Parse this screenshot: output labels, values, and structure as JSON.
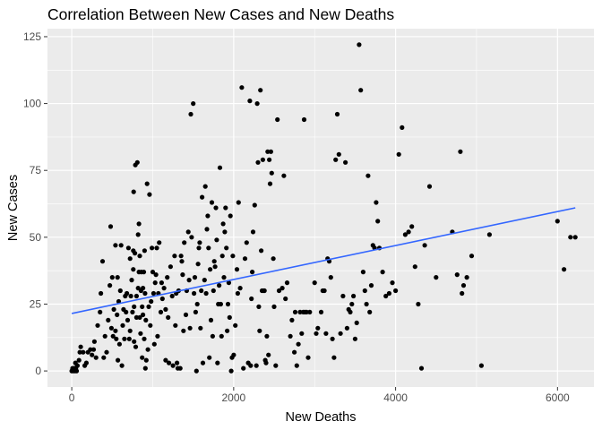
{
  "chart_data": {
    "type": "scatter",
    "title": "Correlation Between New Cases and New Deaths",
    "xlabel": "New Deaths",
    "ylabel": "New Cases",
    "xlim": [
      -300,
      6450
    ],
    "ylim": [
      -6,
      128
    ],
    "x_ticks": [
      0,
      2000,
      4000,
      6000
    ],
    "y_ticks": [
      0,
      25,
      50,
      75,
      100,
      125
    ],
    "grid": true,
    "legend": "none",
    "colors": {
      "panel": "#ebebeb",
      "grid": "#ffffff",
      "point": "#000000",
      "trend": "#3366ff"
    },
    "trend_line": {
      "x": [
        0,
        6220
      ],
      "y": [
        21.5,
        61
      ]
    },
    "points": [
      [
        0,
        0
      ],
      [
        10,
        1
      ],
      [
        20,
        0
      ],
      [
        30,
        1
      ],
      [
        40,
        0
      ],
      [
        50,
        1
      ],
      [
        60,
        0
      ],
      [
        70,
        2
      ],
      [
        45,
        3
      ],
      [
        90,
        4
      ],
      [
        100,
        7
      ],
      [
        110,
        9
      ],
      [
        140,
        7
      ],
      [
        160,
        2
      ],
      [
        180,
        3
      ],
      [
        200,
        7
      ],
      [
        230,
        8
      ],
      [
        250,
        6
      ],
      [
        270,
        8
      ],
      [
        280,
        11
      ],
      [
        300,
        5
      ],
      [
        320,
        17
      ],
      [
        350,
        22
      ],
      [
        360,
        29
      ],
      [
        380,
        41
      ],
      [
        395,
        5
      ],
      [
        410,
        13
      ],
      [
        430,
        7
      ],
      [
        450,
        19
      ],
      [
        470,
        32
      ],
      [
        480,
        54
      ],
      [
        490,
        16
      ],
      [
        500,
        35
      ],
      [
        510,
        13
      ],
      [
        520,
        23
      ],
      [
        540,
        15
      ],
      [
        540,
        47
      ],
      [
        550,
        12
      ],
      [
        560,
        21
      ],
      [
        565,
        35
      ],
      [
        570,
        4
      ],
      [
        580,
        26
      ],
      [
        590,
        10
      ],
      [
        600,
        30
      ],
      [
        610,
        47
      ],
      [
        620,
        2
      ],
      [
        630,
        17
      ],
      [
        640,
        23
      ],
      [
        650,
        12
      ],
      [
        660,
        28
      ],
      [
        670,
        22
      ],
      [
        680,
        29
      ],
      [
        690,
        19
      ],
      [
        700,
        46
      ],
      [
        710,
        12
      ],
      [
        720,
        42
      ],
      [
        720,
        15
      ],
      [
        730,
        28
      ],
      [
        740,
        34
      ],
      [
        750,
        22
      ],
      [
        760,
        38
      ],
      [
        760,
        45
      ],
      [
        765,
        67
      ],
      [
        770,
        11
      ],
      [
        770,
        24
      ],
      [
        780,
        44
      ],
      [
        785,
        77
      ],
      [
        790,
        9
      ],
      [
        800,
        20
      ],
      [
        800,
        28
      ],
      [
        810,
        78
      ],
      [
        820,
        31
      ],
      [
        820,
        51
      ],
      [
        830,
        55
      ],
      [
        830,
        37
      ],
      [
        840,
        20
      ],
      [
        840,
        43
      ],
      [
        850,
        14
      ],
      [
        855,
        30
      ],
      [
        860,
        37
      ],
      [
        870,
        5
      ],
      [
        870,
        24
      ],
      [
        880,
        21
      ],
      [
        880,
        31
      ],
      [
        890,
        37
      ],
      [
        895,
        12
      ],
      [
        900,
        45
      ],
      [
        905,
        29
      ],
      [
        910,
        1
      ],
      [
        915,
        19
      ],
      [
        920,
        4
      ],
      [
        930,
        70
      ],
      [
        940,
        8
      ],
      [
        950,
        24
      ],
      [
        960,
        66
      ],
      [
        970,
        17
      ],
      [
        980,
        26
      ],
      [
        990,
        46
      ],
      [
        1000,
        37
      ],
      [
        1010,
        29
      ],
      [
        1020,
        10
      ],
      [
        1030,
        33
      ],
      [
        1040,
        36
      ],
      [
        1050,
        46
      ],
      [
        1060,
        13
      ],
      [
        1070,
        29
      ],
      [
        1080,
        48
      ],
      [
        1100,
        22
      ],
      [
        1110,
        33
      ],
      [
        1120,
        27
      ],
      [
        1140,
        31
      ],
      [
        1160,
        23
      ],
      [
        1160,
        4
      ],
      [
        1180,
        35
      ],
      [
        1190,
        20
      ],
      [
        1200,
        3
      ],
      [
        1220,
        39
      ],
      [
        1240,
        28
      ],
      [
        1250,
        2
      ],
      [
        1270,
        43
      ],
      [
        1280,
        17
      ],
      [
        1290,
        29
      ],
      [
        1300,
        3
      ],
      [
        1310,
        1
      ],
      [
        1320,
        30
      ],
      [
        1340,
        1
      ],
      [
        1350,
        43
      ],
      [
        1360,
        41
      ],
      [
        1370,
        36
      ],
      [
        1380,
        15
      ],
      [
        1390,
        48
      ],
      [
        1410,
        21
      ],
      [
        1420,
        30
      ],
      [
        1440,
        52
      ],
      [
        1450,
        34
      ],
      [
        1460,
        16
      ],
      [
        1470,
        96
      ],
      [
        1480,
        50
      ],
      [
        1500,
        100
      ],
      [
        1510,
        29
      ],
      [
        1520,
        35
      ],
      [
        1530,
        22
      ],
      [
        1540,
        0
      ],
      [
        1550,
        25
      ],
      [
        1560,
        40
      ],
      [
        1570,
        46
      ],
      [
        1580,
        48
      ],
      [
        1590,
        16
      ],
      [
        1600,
        30
      ],
      [
        1610,
        65
      ],
      [
        1620,
        3
      ],
      [
        1640,
        34
      ],
      [
        1650,
        69
      ],
      [
        1660,
        29
      ],
      [
        1670,
        53
      ],
      [
        1680,
        58
      ],
      [
        1690,
        46
      ],
      [
        1700,
        5
      ],
      [
        1710,
        38
      ],
      [
        1720,
        19
      ],
      [
        1730,
        63
      ],
      [
        1740,
        13
      ],
      [
        1750,
        30
      ],
      [
        1760,
        41
      ],
      [
        1770,
        39
      ],
      [
        1780,
        61
      ],
      [
        1790,
        49
      ],
      [
        1800,
        3
      ],
      [
        1810,
        25
      ],
      [
        1820,
        32
      ],
      [
        1830,
        76
      ],
      [
        1840,
        25
      ],
      [
        1850,
        13
      ],
      [
        1860,
        43
      ],
      [
        1870,
        55
      ],
      [
        1880,
        35
      ],
      [
        1890,
        52
      ],
      [
        1900,
        61
      ],
      [
        1910,
        46
      ],
      [
        1920,
        15
      ],
      [
        1930,
        25
      ],
      [
        1940,
        33
      ],
      [
        1950,
        20
      ],
      [
        1960,
        58
      ],
      [
        1970,
        0
      ],
      [
        1980,
        5
      ],
      [
        1990,
        43
      ],
      [
        2000,
        6
      ],
      [
        2020,
        17
      ],
      [
        2040,
        38
      ],
      [
        2050,
        29
      ],
      [
        2060,
        63
      ],
      [
        2080,
        31
      ],
      [
        2100,
        106
      ],
      [
        2120,
        1
      ],
      [
        2140,
        42
      ],
      [
        2160,
        48
      ],
      [
        2180,
        3
      ],
      [
        2200,
        101
      ],
      [
        2210,
        2
      ],
      [
        2220,
        27
      ],
      [
        2230,
        37
      ],
      [
        2240,
        52
      ],
      [
        2260,
        62
      ],
      [
        2280,
        2
      ],
      [
        2290,
        100
      ],
      [
        2300,
        78
      ],
      [
        2310,
        24
      ],
      [
        2320,
        15
      ],
      [
        2330,
        105
      ],
      [
        2340,
        45
      ],
      [
        2350,
        30
      ],
      [
        2360,
        79
      ],
      [
        2370,
        30
      ],
      [
        2380,
        30
      ],
      [
        2390,
        4
      ],
      [
        2400,
        3
      ],
      [
        2410,
        13
      ],
      [
        2420,
        82
      ],
      [
        2430,
        6
      ],
      [
        2440,
        79
      ],
      [
        2450,
        70
      ],
      [
        2460,
        82
      ],
      [
        2470,
        74
      ],
      [
        2490,
        42
      ],
      [
        2500,
        24
      ],
      [
        2520,
        2
      ],
      [
        2540,
        94
      ],
      [
        2560,
        30
      ],
      [
        2600,
        31
      ],
      [
        2620,
        73
      ],
      [
        2640,
        27
      ],
      [
        2660,
        33
      ],
      [
        2700,
        13
      ],
      [
        2720,
        19
      ],
      [
        2750,
        7
      ],
      [
        2760,
        22
      ],
      [
        2780,
        2
      ],
      [
        2800,
        10
      ],
      [
        2820,
        22
      ],
      [
        2840,
        14
      ],
      [
        2860,
        22
      ],
      [
        2870,
        94
      ],
      [
        2880,
        22
      ],
      [
        2900,
        22
      ],
      [
        2920,
        5
      ],
      [
        2940,
        22
      ],
      [
        3000,
        33
      ],
      [
        3020,
        14
      ],
      [
        3040,
        16
      ],
      [
        3080,
        22
      ],
      [
        3100,
        30
      ],
      [
        3120,
        30
      ],
      [
        3140,
        14
      ],
      [
        3160,
        42
      ],
      [
        3180,
        41
      ],
      [
        3200,
        35
      ],
      [
        3220,
        12
      ],
      [
        3240,
        5
      ],
      [
        3260,
        79
      ],
      [
        3280,
        96
      ],
      [
        3300,
        81
      ],
      [
        3320,
        14
      ],
      [
        3350,
        28
      ],
      [
        3380,
        78
      ],
      [
        3400,
        16
      ],
      [
        3420,
        23
      ],
      [
        3440,
        22
      ],
      [
        3460,
        25
      ],
      [
        3480,
        28
      ],
      [
        3500,
        12
      ],
      [
        3520,
        18
      ],
      [
        3550,
        122
      ],
      [
        3570,
        105
      ],
      [
        3600,
        37
      ],
      [
        3620,
        30
      ],
      [
        3640,
        25
      ],
      [
        3660,
        73
      ],
      [
        3680,
        22
      ],
      [
        3700,
        32
      ],
      [
        3720,
        47
      ],
      [
        3740,
        46
      ],
      [
        3760,
        63
      ],
      [
        3780,
        56
      ],
      [
        3800,
        46
      ],
      [
        3840,
        37
      ],
      [
        3880,
        28
      ],
      [
        3920,
        29
      ],
      [
        3960,
        33
      ],
      [
        4000,
        30
      ],
      [
        4040,
        81
      ],
      [
        4080,
        91
      ],
      [
        4120,
        51
      ],
      [
        4160,
        52
      ],
      [
        4200,
        54
      ],
      [
        4240,
        39
      ],
      [
        4280,
        25
      ],
      [
        4320,
        1
      ],
      [
        4360,
        47
      ],
      [
        4420,
        69
      ],
      [
        4500,
        35
      ],
      [
        4700,
        52
      ],
      [
        4760,
        36
      ],
      [
        4800,
        82
      ],
      [
        4820,
        29
      ],
      [
        4840,
        32
      ],
      [
        4880,
        35
      ],
      [
        4940,
        43
      ],
      [
        5060,
        2
      ],
      [
        5160,
        51
      ],
      [
        6000,
        56
      ],
      [
        6080,
        38
      ],
      [
        6160,
        50
      ],
      [
        6220,
        50
      ]
    ]
  }
}
